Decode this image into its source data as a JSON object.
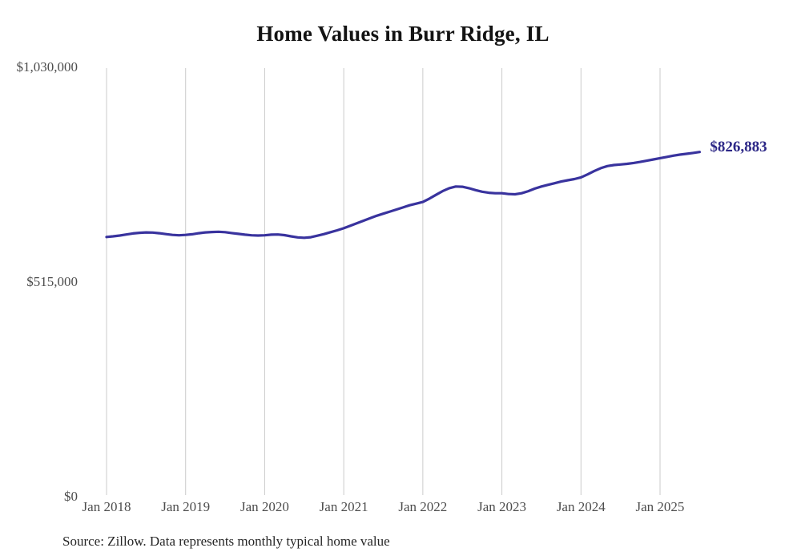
{
  "title": "Home Values in Burr Ridge, IL",
  "source_note": "Source: Zillow. Data represents monthly typical home value",
  "end_label": "$826,883",
  "colors": {
    "line": "#39339e",
    "end_label": "#2d2887",
    "gridline": "#cbcbcb",
    "axis_text": "#4d4d4d",
    "title_text": "#131313",
    "source_text": "#262626",
    "background": "#ffffff"
  },
  "chart_data": {
    "type": "line",
    "title": "Home Values in Burr Ridge, IL",
    "xlabel": "",
    "ylabel": "",
    "grid": "vertical-only",
    "legend": "none",
    "ylim": [
      0,
      1030000
    ],
    "y_ticks": [
      {
        "label": "$0",
        "value": 0
      },
      {
        "label": "$515,000",
        "value": 515000
      },
      {
        "label": "$1,030,000",
        "value": 1030000
      }
    ],
    "x_ticks": [
      "Jan 2018",
      "Jan 2019",
      "Jan 2020",
      "Jan 2021",
      "Jan 2022",
      "Jan 2023",
      "Jan 2024",
      "Jan 2025"
    ],
    "x_start_month": "2018-01",
    "x_end_month": "2025-07",
    "months_per_tick": 12,
    "last_point_label": "$826,883",
    "series": [
      {
        "name": "Monthly typical home value",
        "values": [
          623000,
          624500,
          626500,
          629000,
          631500,
          633000,
          634000,
          633500,
          632000,
          630000,
          628000,
          627000,
          628000,
          629500,
          632000,
          634000,
          635000,
          635500,
          634500,
          632500,
          630500,
          628500,
          627000,
          626500,
          627000,
          628500,
          629000,
          627500,
          624500,
          622000,
          621000,
          622500,
          626000,
          630000,
          634500,
          639000,
          644000,
          650000,
          656000,
          662000,
          668000,
          674000,
          679000,
          684000,
          689000,
          694000,
          699000,
          703000,
          707000,
          715000,
          724000,
          733000,
          740000,
          744000,
          743500,
          740000,
          735500,
          731500,
          729000,
          728000,
          728000,
          726000,
          725500,
          728000,
          733000,
          739000,
          744000,
          748000,
          752000,
          756000,
          759000,
          762000,
          766000,
          773000,
          781000,
          788000,
          793000,
          795500,
          797000,
          798500,
          800500,
          803000,
          806000,
          809000,
          812000,
          815000,
          818000,
          820500,
          822500,
          824500,
          826883
        ]
      }
    ]
  }
}
